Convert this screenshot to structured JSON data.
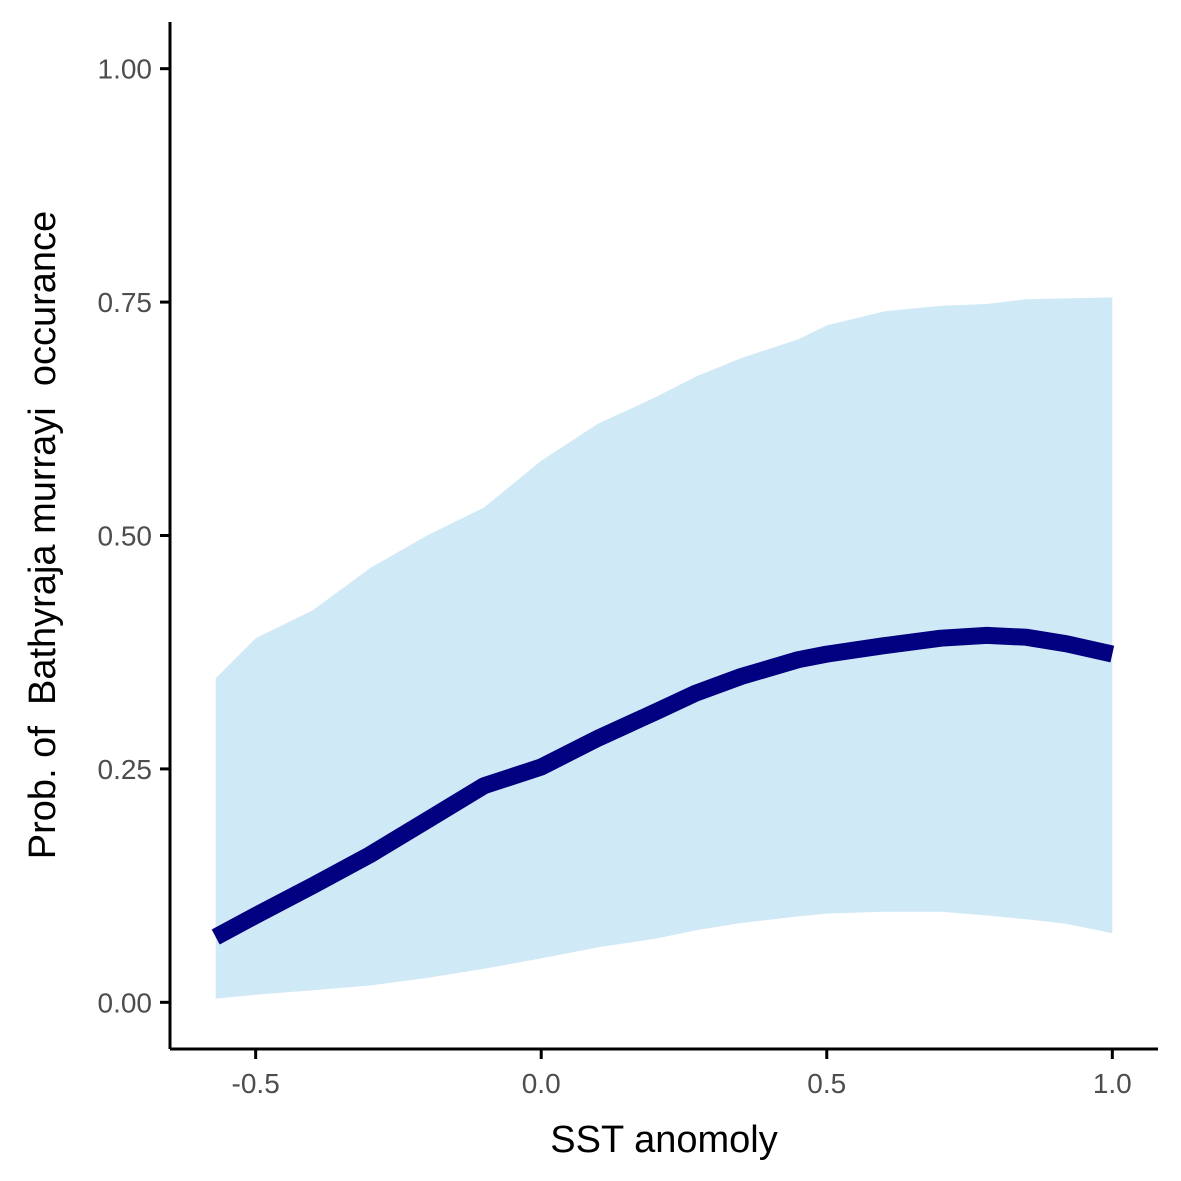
{
  "chart_data": {
    "type": "line",
    "title": "",
    "xlabel": "SST anomoly",
    "ylabel": "Prob. of  Bathyraja murrayi  occurance",
    "xlim": [
      -0.65,
      1.08
    ],
    "ylim": [
      -0.05,
      1.05
    ],
    "x_ticks": [
      -0.5,
      0.0,
      0.5,
      1.0
    ],
    "x_tick_labels": [
      "-0.5",
      "0.0",
      "0.5",
      "1.0"
    ],
    "y_ticks": [
      0.0,
      0.25,
      0.5,
      0.75,
      1.0
    ],
    "y_tick_labels": [
      "0.00",
      "0.25",
      "0.50",
      "0.75",
      "1.00"
    ],
    "grid": false,
    "legend": "none",
    "colors": {
      "line": "#000080",
      "ribbon": "#d0e9f6",
      "axis": "#000000"
    },
    "series": [
      {
        "x": [
          -0.57,
          -0.5,
          -0.4,
          -0.3,
          -0.2,
          -0.1,
          0.0,
          0.1,
          0.2,
          0.27,
          0.35,
          0.45,
          0.5,
          0.6,
          0.7,
          0.78,
          0.85,
          0.92,
          1.0
        ],
        "y": [
          0.07,
          0.093,
          0.125,
          0.158,
          0.195,
          0.232,
          0.252,
          0.283,
          0.311,
          0.331,
          0.349,
          0.367,
          0.373,
          0.382,
          0.39,
          0.393,
          0.391,
          0.384,
          0.373
        ],
        "lower": [
          0.004,
          0.008,
          0.013,
          0.018,
          0.026,
          0.036,
          0.047,
          0.059,
          0.068,
          0.077,
          0.085,
          0.092,
          0.095,
          0.097,
          0.097,
          0.093,
          0.089,
          0.084,
          0.074
        ],
        "upper": [
          0.347,
          0.39,
          0.42,
          0.465,
          0.5,
          0.53,
          0.58,
          0.62,
          0.648,
          0.67,
          0.69,
          0.71,
          0.725,
          0.74,
          0.746,
          0.748,
          0.753,
          0.754,
          0.755
        ]
      }
    ]
  }
}
